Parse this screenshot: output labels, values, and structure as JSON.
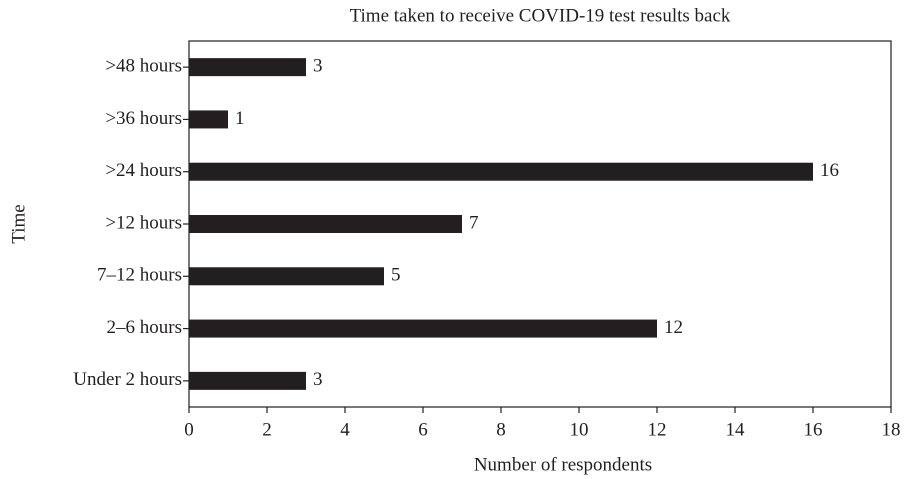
{
  "chart_data": {
    "type": "barh",
    "title": "Time taken to receive COVID-19 test results back",
    "x_label": "Number of respondents",
    "y_label": "Time",
    "categories": [
      ">48 hours",
      ">36 hours",
      ">24 hours",
      ">12 hours",
      "7–12 hours",
      "2–6 hours",
      "Under 2 hours"
    ],
    "values": [
      3,
      1,
      16,
      7,
      5,
      12,
      3
    ],
    "color": "#231f20",
    "xlim": [
      0,
      18
    ],
    "xticks": [
      0,
      2,
      4,
      6,
      8,
      10,
      12,
      14,
      16,
      18
    ],
    "grid": false
  }
}
